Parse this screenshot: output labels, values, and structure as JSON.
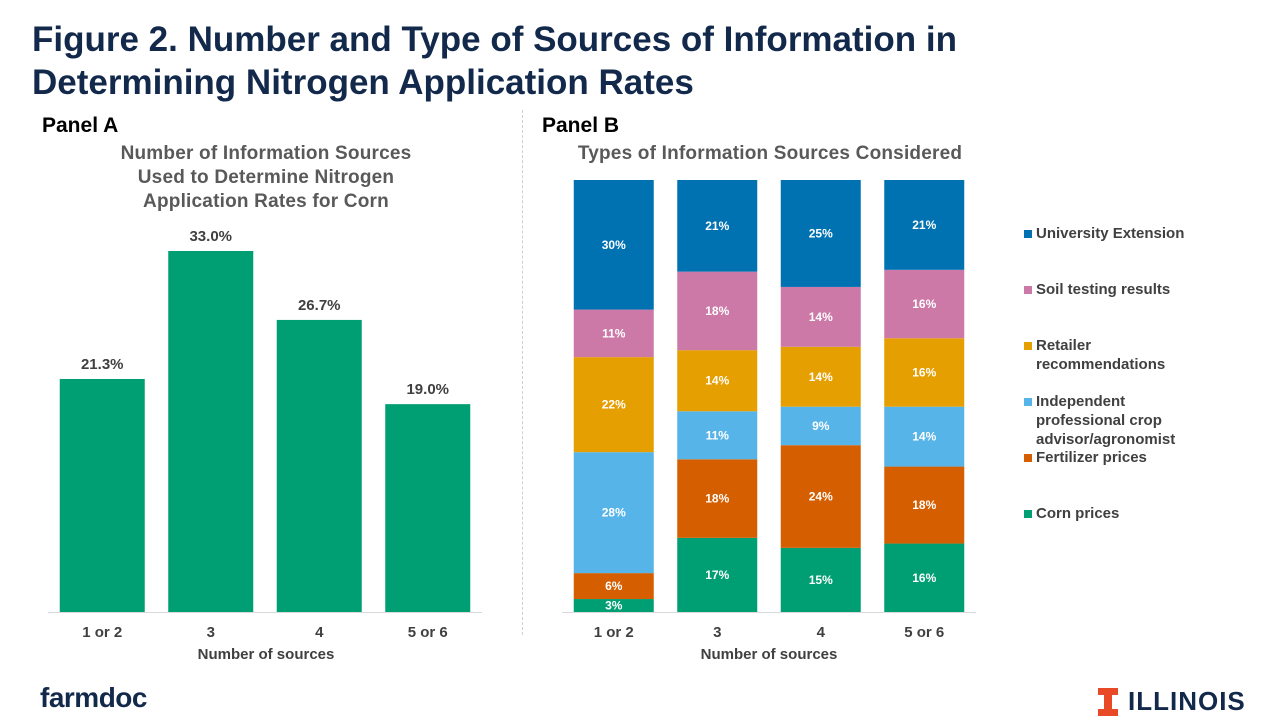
{
  "title": {
    "line1": "Figure 2. Number and Type of Sources of Information in",
    "line2": "Determining Nitrogen Application Rates"
  },
  "panel_a": {
    "label": "Panel A",
    "chart_title": [
      "Number of Information Sources",
      "Used to Determine Nitrogen",
      "Application Rates for Corn"
    ]
  },
  "panel_b": {
    "label": "Panel B",
    "chart_title": "Types of Information Sources Considered"
  },
  "footer": {
    "left_logo": "farmdoc",
    "right_logo": "ILLINOIS",
    "right_logo_icon": "block-i-icon"
  },
  "colors": {
    "title": "#13294b",
    "bar_green": "#009e73",
    "university_extension": "#0072b2",
    "soil_testing": "#cc79a7",
    "retailer": "#e69f00",
    "independent": "#56b4e9",
    "fertilizer": "#d55e00",
    "corn": "#009e73",
    "illinois_orange": "#e84a27"
  },
  "chart_data": [
    {
      "type": "bar",
      "categories": [
        "1 or 2",
        "3",
        "4",
        "5 or 6"
      ],
      "values": [
        21.3,
        33.0,
        26.7,
        19.0
      ],
      "data_labels": [
        "21.3%",
        "33.0%",
        "26.7%",
        "19.0%"
      ],
      "title": "Number of Information Sources Used to Determine Nitrogen Application Rates for Corn",
      "xlabel": "Number of sources",
      "ylabel": "",
      "ylim": [
        0,
        40
      ],
      "grid": false,
      "legend": "none"
    },
    {
      "type": "bar",
      "stacked": "percent",
      "categories": [
        "1 or 2",
        "3",
        "4",
        "5 or 6"
      ],
      "series": [
        {
          "name": "Corn prices",
          "values": [
            3,
            17,
            15,
            16
          ],
          "labels": [
            "3%",
            "17%",
            "15%",
            "16%"
          ],
          "color": "#009e73"
        },
        {
          "name": "Fertilizer prices",
          "values": [
            6,
            18,
            24,
            18
          ],
          "labels": [
            "6%",
            "18%",
            "24%",
            "18%"
          ],
          "color": "#d55e00"
        },
        {
          "name": "Independent professional crop advisor/agronomist",
          "values": [
            28,
            11,
            9,
            14
          ],
          "labels": [
            "28%",
            "11%",
            "9%",
            "14%"
          ],
          "color": "#56b4e9"
        },
        {
          "name": "Retailer recommendations",
          "values": [
            22,
            14,
            14,
            16
          ],
          "labels": [
            "22%",
            "14%",
            "14%",
            "16%"
          ],
          "color": "#e69f00"
        },
        {
          "name": "Soil testing results",
          "values": [
            11,
            18,
            14,
            16
          ],
          "labels": [
            "11%",
            "18%",
            "14%",
            "16%"
          ],
          "color": "#cc79a7"
        },
        {
          "name": "University Extension",
          "values": [
            30,
            21,
            25,
            21
          ],
          "labels": [
            "30%",
            "21%",
            "25%",
            "21%"
          ],
          "color": "#0072b2"
        }
      ],
      "title": "Types of Information Sources Considered",
      "xlabel": "Number of sources",
      "ylabel": "",
      "ylim": [
        0,
        100
      ],
      "grid": false,
      "legend": "right",
      "legend_entries": [
        {
          "text": "University Extension",
          "color": "#0072b2"
        },
        {
          "text": "Soil testing results",
          "color": "#cc79a7"
        },
        {
          "text": "Retailer\nrecommendations",
          "color": "#e69f00"
        },
        {
          "text": "Independent\nprofessional crop\nadvisor/agronomist",
          "color": "#56b4e9"
        },
        {
          "text": "Fertilizer prices",
          "color": "#d55e00"
        },
        {
          "text": "Corn prices",
          "color": "#009e73"
        }
      ]
    }
  ]
}
